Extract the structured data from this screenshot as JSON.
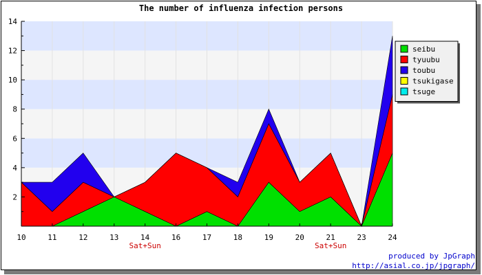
{
  "chart_data": {
    "type": "area",
    "stacked": true,
    "title": "The number of influenza infection persons",
    "x": [
      10,
      11,
      12,
      13,
      14,
      16,
      17,
      18,
      19,
      20,
      21,
      23,
      24
    ],
    "x_tick_labels": [
      "10",
      "11",
      "12",
      "13",
      "14",
      "16",
      "17",
      "18",
      "19",
      "20",
      "21",
      "23",
      "24"
    ],
    "x_annotations": [
      {
        "x": 14,
        "text": "Sat+Sun"
      },
      {
        "x": 21,
        "text": "Sat+Sun"
      }
    ],
    "ylim": [
      0,
      14
    ],
    "y_ticks": [
      2,
      4,
      6,
      8,
      10,
      12,
      14
    ],
    "y_bands": [
      [
        4,
        6
      ],
      [
        8,
        10
      ],
      [
        12,
        14
      ]
    ],
    "y_band_colors": {
      "light": "#f5f5f5",
      "blue": "#dde6ff"
    },
    "grid": true,
    "legend_position": "top-right",
    "series": [
      {
        "name": "seibu",
        "color": "#00e000",
        "values": [
          0,
          0,
          1,
          2,
          1,
          0,
          1,
          0,
          3,
          1,
          2,
          0,
          5
        ]
      },
      {
        "name": "tyuubu",
        "color": "#ff0000",
        "values": [
          3,
          1,
          2,
          0,
          2,
          5,
          3,
          2,
          4,
          2,
          3,
          0,
          4
        ]
      },
      {
        "name": "toubu",
        "color": "#2200ee",
        "values": [
          0,
          2,
          2,
          0,
          0,
          0,
          0,
          1,
          1,
          0,
          0,
          0,
          4
        ]
      },
      {
        "name": "tsukigase",
        "color": "#ffff00",
        "values": [
          0,
          0,
          0,
          0,
          0,
          0,
          0,
          0,
          0,
          0,
          0,
          0,
          0
        ]
      },
      {
        "name": "tsuge",
        "color": "#00eeee",
        "values": [
          0,
          0,
          0,
          0,
          0,
          0,
          0,
          0,
          0,
          0,
          0,
          0,
          0
        ]
      }
    ]
  },
  "footer": {
    "line1": "produced by JpGraph",
    "line2": "http://asial.co.jp/jpgraph/"
  }
}
